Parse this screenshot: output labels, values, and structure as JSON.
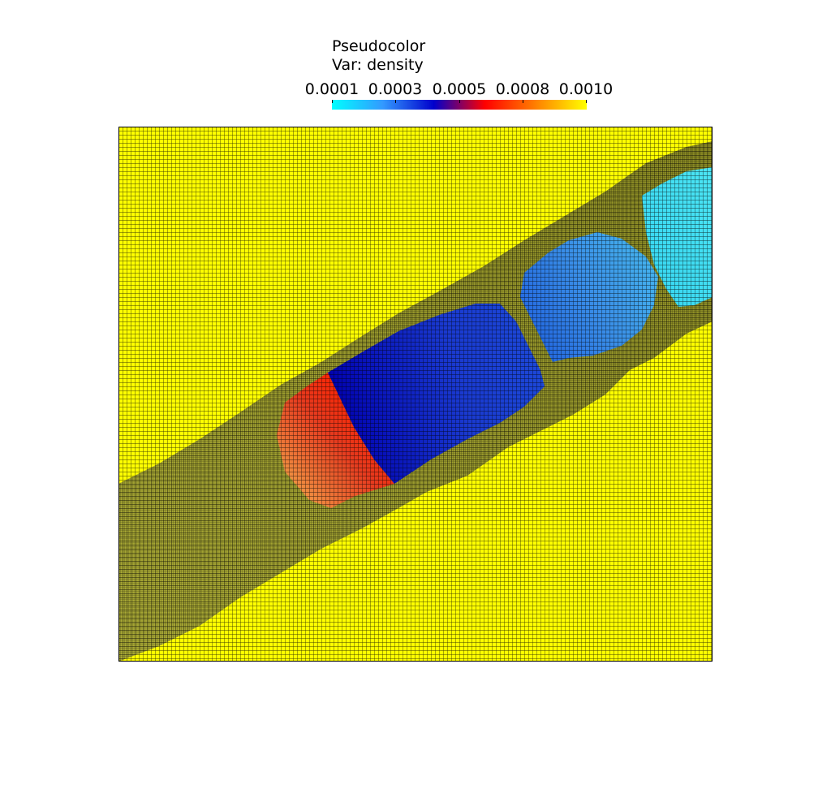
{
  "legend": {
    "plot_type": "Pseudocolor",
    "variable_label": "Var: density",
    "ticks": [
      "0.0001",
      "0.0003",
      "0.0005",
      "0.0008",
      "0.0010"
    ],
    "colormap": [
      "#00ffff",
      "#3399ff",
      "#0000cc",
      "#ff0000",
      "#ff8000",
      "#ffff00"
    ]
  },
  "field": {
    "background_color": "#ffff00",
    "mesh_color": "#000000",
    "regions": [
      {
        "name": "high-density-red",
        "colors": [
          "#ff2200",
          "#e63a1e",
          "#f08c40"
        ]
      },
      {
        "name": "mid-density-blue",
        "colors": [
          "#0000b0",
          "#1a3ad0",
          "#1c48d8"
        ]
      },
      {
        "name": "low-density-lightblue",
        "colors": [
          "#2266e0",
          "#3a8fe8",
          "#45b5ee"
        ]
      },
      {
        "name": "lowest-density-cyan",
        "colors": [
          "#33d4f0",
          "#4ce6f5"
        ]
      }
    ]
  }
}
